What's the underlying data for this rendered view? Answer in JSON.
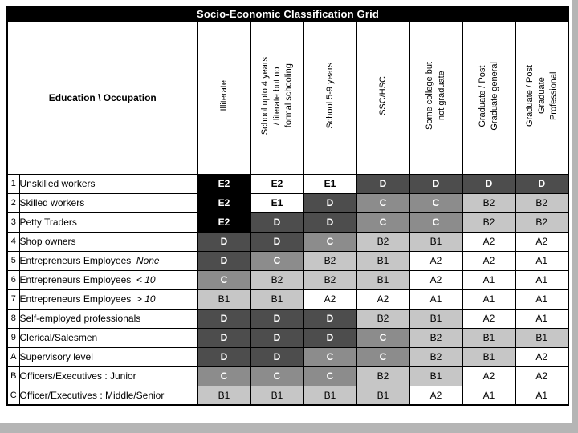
{
  "page": {
    "title": "Socio-Economic Classification Grid"
  },
  "table": {
    "corner_header": "Education \\ Occupation",
    "columns": [
      {
        "label": "Illiterate"
      },
      {
        "label": "School upto 4 years\n/ literate but no\nformal schooling"
      },
      {
        "label": "School 5-9 years"
      },
      {
        "label": "SSC/HSC"
      },
      {
        "label": "Some college but\nnot graduate"
      },
      {
        "label": "Graduate / Post\nGraduate general"
      },
      {
        "label": "Graduate / Post\nGraduate\nProfessional"
      }
    ],
    "rows": [
      {
        "num": "1",
        "label": "Unskilled workers",
        "suffix": "",
        "cells": [
          {
            "v": "E2",
            "s": "black"
          },
          {
            "v": "E2",
            "s": "whitebold"
          },
          {
            "v": "E1",
            "s": "whitebold"
          },
          {
            "v": "D",
            "s": "dark"
          },
          {
            "v": "D",
            "s": "dark"
          },
          {
            "v": "D",
            "s": "dark"
          },
          {
            "v": "D",
            "s": "dark"
          }
        ]
      },
      {
        "num": "2",
        "label": "Skilled workers",
        "suffix": "",
        "cells": [
          {
            "v": "E2",
            "s": "black"
          },
          {
            "v": "E1",
            "s": "whitebold"
          },
          {
            "v": "D",
            "s": "dark"
          },
          {
            "v": "C",
            "s": "gray"
          },
          {
            "v": "C",
            "s": "gray"
          },
          {
            "v": "B2",
            "s": "light"
          },
          {
            "v": "B2",
            "s": "light"
          }
        ]
      },
      {
        "num": "3",
        "label": "Petty Traders",
        "suffix": "",
        "cells": [
          {
            "v": "E2",
            "s": "black"
          },
          {
            "v": "D",
            "s": "dark"
          },
          {
            "v": "D",
            "s": "dark"
          },
          {
            "v": "C",
            "s": "gray"
          },
          {
            "v": "C",
            "s": "gray"
          },
          {
            "v": "B2",
            "s": "light"
          },
          {
            "v": "B2",
            "s": "light"
          }
        ]
      },
      {
        "num": "4",
        "label": "Shop owners",
        "suffix": "",
        "cells": [
          {
            "v": "D",
            "s": "dark"
          },
          {
            "v": "D",
            "s": "dark"
          },
          {
            "v": "C",
            "s": "gray"
          },
          {
            "v": "B2",
            "s": "light"
          },
          {
            "v": "B1",
            "s": "light"
          },
          {
            "v": "A2",
            "s": "white"
          },
          {
            "v": "A2",
            "s": "white"
          }
        ]
      },
      {
        "num": "5",
        "label": "Entrepreneurs Employees",
        "suffix": "None",
        "cells": [
          {
            "v": "D",
            "s": "dark"
          },
          {
            "v": "C",
            "s": "gray"
          },
          {
            "v": "B2",
            "s": "light"
          },
          {
            "v": "B1",
            "s": "light"
          },
          {
            "v": "A2",
            "s": "white"
          },
          {
            "v": "A2",
            "s": "white"
          },
          {
            "v": "A1",
            "s": "white"
          }
        ]
      },
      {
        "num": "6",
        "label": "Entrepreneurs Employees",
        "suffix": "< 10",
        "cells": [
          {
            "v": "C",
            "s": "gray"
          },
          {
            "v": "B2",
            "s": "light"
          },
          {
            "v": "B2",
            "s": "light"
          },
          {
            "v": "B1",
            "s": "light"
          },
          {
            "v": "A2",
            "s": "white"
          },
          {
            "v": "A1",
            "s": "white"
          },
          {
            "v": "A1",
            "s": "white"
          }
        ]
      },
      {
        "num": "7",
        "label": "Entrepreneurs Employees",
        "suffix": "> 10",
        "cells": [
          {
            "v": "B1",
            "s": "light"
          },
          {
            "v": "B1",
            "s": "light"
          },
          {
            "v": "A2",
            "s": "white"
          },
          {
            "v": "A2",
            "s": "white"
          },
          {
            "v": "A1",
            "s": "white"
          },
          {
            "v": "A1",
            "s": "white"
          },
          {
            "v": "A1",
            "s": "white"
          }
        ]
      },
      {
        "num": "8",
        "label": "Self-employed professionals",
        "suffix": "",
        "cells": [
          {
            "v": "D",
            "s": "dark"
          },
          {
            "v": "D",
            "s": "dark"
          },
          {
            "v": "D",
            "s": "dark"
          },
          {
            "v": "B2",
            "s": "light"
          },
          {
            "v": "B1",
            "s": "light"
          },
          {
            "v": "A2",
            "s": "white"
          },
          {
            "v": "A1",
            "s": "white"
          }
        ]
      },
      {
        "num": "9",
        "label": "Clerical/Salesmen",
        "suffix": "",
        "cells": [
          {
            "v": "D",
            "s": "dark"
          },
          {
            "v": "D",
            "s": "dark"
          },
          {
            "v": "D",
            "s": "dark"
          },
          {
            "v": "C",
            "s": "gray"
          },
          {
            "v": "B2",
            "s": "light"
          },
          {
            "v": "B1",
            "s": "light"
          },
          {
            "v": "B1",
            "s": "light"
          }
        ]
      },
      {
        "num": "A",
        "label": "Supervisory level",
        "suffix": "",
        "cells": [
          {
            "v": "D",
            "s": "dark"
          },
          {
            "v": "D",
            "s": "dark"
          },
          {
            "v": "C",
            "s": "gray"
          },
          {
            "v": "C",
            "s": "gray"
          },
          {
            "v": "B2",
            "s": "light"
          },
          {
            "v": "B1",
            "s": "light"
          },
          {
            "v": "A2",
            "s": "white"
          }
        ]
      },
      {
        "num": "B",
        "label": "Officers/Executives : Junior",
        "suffix": "",
        "cells": [
          {
            "v": "C",
            "s": "gray"
          },
          {
            "v": "C",
            "s": "gray"
          },
          {
            "v": "C",
            "s": "gray"
          },
          {
            "v": "B2",
            "s": "light"
          },
          {
            "v": "B1",
            "s": "light"
          },
          {
            "v": "A2",
            "s": "white"
          },
          {
            "v": "A2",
            "s": "white"
          }
        ]
      },
      {
        "num": "C",
        "label": "Officer/Executives : Middle/Senior",
        "suffix": "",
        "cells": [
          {
            "v": "B1",
            "s": "light"
          },
          {
            "v": "B1",
            "s": "light"
          },
          {
            "v": "B1",
            "s": "light"
          },
          {
            "v": "B1",
            "s": "light"
          },
          {
            "v": "A2",
            "s": "white"
          },
          {
            "v": "A1",
            "s": "white"
          },
          {
            "v": "A1",
            "s": "white"
          }
        ]
      }
    ]
  },
  "colors": {
    "title_bg": "#000000",
    "title_fg": "#ffffff",
    "black": "#000000",
    "dark": "#4d4d4d",
    "gray": "#8c8c8c",
    "light": "#c6c6c6",
    "white": "#ffffff",
    "page_bg": "#b5b5b5"
  }
}
